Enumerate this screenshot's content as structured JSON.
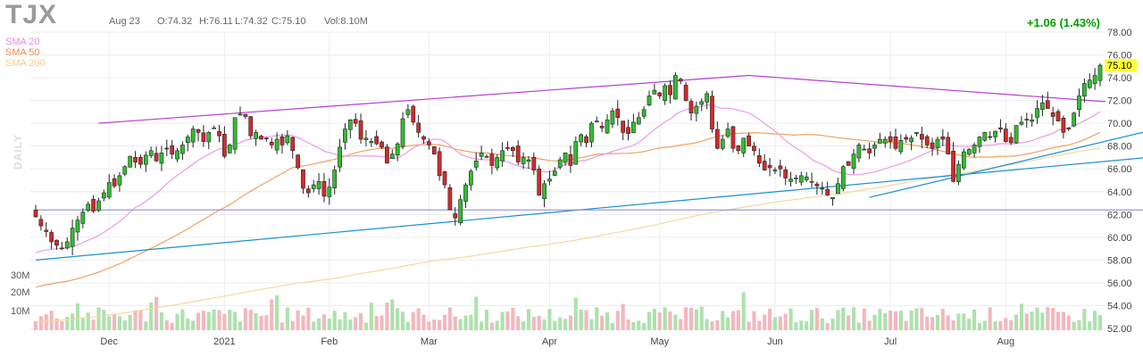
{
  "header": {
    "ticker": "TJX",
    "date": "Aug 23",
    "open": "O:74.32",
    "high": "H:76.11",
    "low": "L:74.32",
    "close": "C:75.10",
    "volume": "Vol:8.10M",
    "change": "+1.06 (1.43%)"
  },
  "period_label": "DAILY",
  "volume_axis": [
    "30M",
    "20M",
    "10M"
  ],
  "colors": {
    "up": "#2fbf2f",
    "down": "#d42a2a",
    "sma20": "#e89be8",
    "sma50": "#f0a060",
    "sma200": "#f5d8a0",
    "trend_purple": "#b63fd4",
    "trend_blue": "#1a8fd0",
    "support": "#8a8fd8",
    "price_tag": "#ffff33"
  },
  "chart_data": {
    "type": "candlestick",
    "interval": "daily",
    "ylim": [
      52,
      78
    ],
    "yticks": [
      52,
      54,
      56,
      58,
      60,
      62,
      64,
      66,
      68,
      70,
      72,
      74,
      76,
      78
    ],
    "x_tick_labels": [
      "Dec",
      "2021",
      "Feb",
      "Mar",
      "Apr",
      "May",
      "Jun",
      "Jul",
      "Aug"
    ],
    "month_start_index": [
      14,
      36,
      56,
      75,
      98,
      119,
      141,
      163,
      185
    ],
    "last_price": "75.10",
    "series_legend": [
      "SMA 20",
      "SMA 50",
      "SMA 200"
    ],
    "closes": [
      61.8,
      61.0,
      60.5,
      59.6,
      59.3,
      59.0,
      59.6,
      60.8,
      61.5,
      62.2,
      62.9,
      62.3,
      63.2,
      63.9,
      64.8,
      64.5,
      65.4,
      66.2,
      67.1,
      66.6,
      66.4,
      67.2,
      67.6,
      66.7,
      67.4,
      67.8,
      67.3,
      67.6,
      68.1,
      68.8,
      69.5,
      69.2,
      68.4,
      69.2,
      69.6,
      68.9,
      67.1,
      68.1,
      70.5,
      70.8,
      70.6,
      68.9,
      69.2,
      68.6,
      68.7,
      68.1,
      68.6,
      68.1,
      68.9,
      67.6,
      66.1,
      64.3,
      63.9,
      64.6,
      64.9,
      63.6,
      64.4,
      65.9,
      67.9,
      69.5,
      70.3,
      70.0,
      68.6,
      68.7,
      68.4,
      68.2,
      67.9,
      66.5,
      67.3,
      68.2,
      70.4,
      71.2,
      70.1,
      69.2,
      68.6,
      68.1,
      67.3,
      65.4,
      64.6,
      62.4,
      61.7,
      63.3,
      64.6,
      65.8,
      66.7,
      67.4,
      67.1,
      66.3,
      67.0,
      67.6,
      67.8,
      67.6,
      66.6,
      67.0,
      66.8,
      65.9,
      63.7,
      64.7,
      65.1,
      65.8,
      66.8,
      67.4,
      66.3,
      68.4,
      69.0,
      68.3,
      70.0,
      70.2,
      69.6,
      70.3,
      71.1,
      70.5,
      69.2,
      69.1,
      70.1,
      70.5,
      71.2,
      72.4,
      72.9,
      72.4,
      73.3,
      72.5,
      74.2,
      73.7,
      72.0,
      70.9,
      71.5,
      71.9,
      72.6,
      69.5,
      67.8,
      68.6,
      69.5,
      67.8,
      67.6,
      68.7,
      68.0,
      67.6,
      66.5,
      65.9,
      66.1,
      65.9,
      66.0,
      65.2,
      65.1,
      65.2,
      65.4,
      65.3,
      64.9,
      64.5,
      64.3,
      63.7,
      63.5,
      64.7,
      66.2,
      66.3,
      67.3,
      68.1,
      67.7,
      67.4,
      68.1,
      68.6,
      68.6,
      68.4,
      67.8,
      68.5,
      68.6,
      68.7,
      69.2,
      68.6,
      68.1,
      67.8,
      68.6,
      68.6,
      67.3,
      64.9,
      66.4,
      67.5,
      67.7,
      68.1,
      68.8,
      69.2,
      68.8,
      69.3,
      69.5,
      68.4,
      68.3,
      69.8,
      70.1,
      70.3,
      70.3,
      71.3,
      71.8,
      71.3,
      70.6,
      70.2,
      69.2,
      69.5,
      70.9,
      72.4,
      73.5,
      73.8,
      74.2,
      75.1
    ],
    "trendlines": [
      {
        "from": [
          12,
          70.0
        ],
        "to": [
          136,
          74.2
        ]
      },
      {
        "from": [
          136,
          74.2
        ],
        "to": [
          204,
          71.9
        ]
      },
      {
        "from": [
          0,
          58.0
        ],
        "to": [
          212,
          67.0
        ]
      },
      {
        "from": [
          159,
          63.5
        ],
        "to": [
          212,
          69.3
        ]
      },
      {
        "from": [
          0,
          62.4
        ],
        "to": [
          212,
          62.4
        ]
      }
    ]
  }
}
